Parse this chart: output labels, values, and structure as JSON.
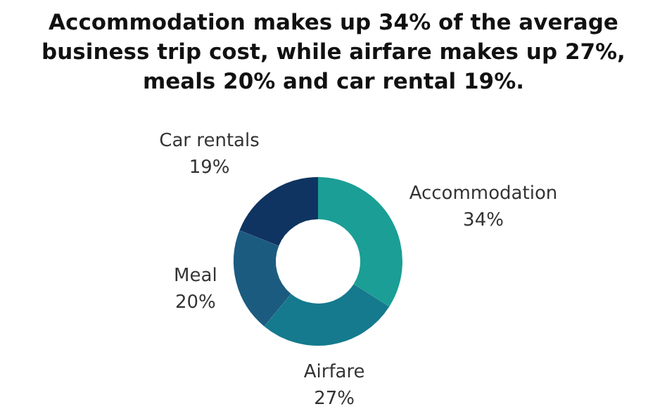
{
  "chart_data": {
    "type": "donut",
    "title": "Accommodation makes up 34% of the average business trip cost, while airfare makes up 27%, meals 20% and car rental 19%.",
    "categories": [
      "Accommodation",
      "Airfare",
      "Meal",
      "Car rentals"
    ],
    "values": [
      34,
      27,
      20,
      19
    ],
    "value_labels": [
      "34%",
      "27%",
      "20%",
      "19%"
    ],
    "colors": [
      "#1a9e95",
      "#157a8e",
      "#1c5b80",
      "#0f3461"
    ],
    "legend": false
  }
}
